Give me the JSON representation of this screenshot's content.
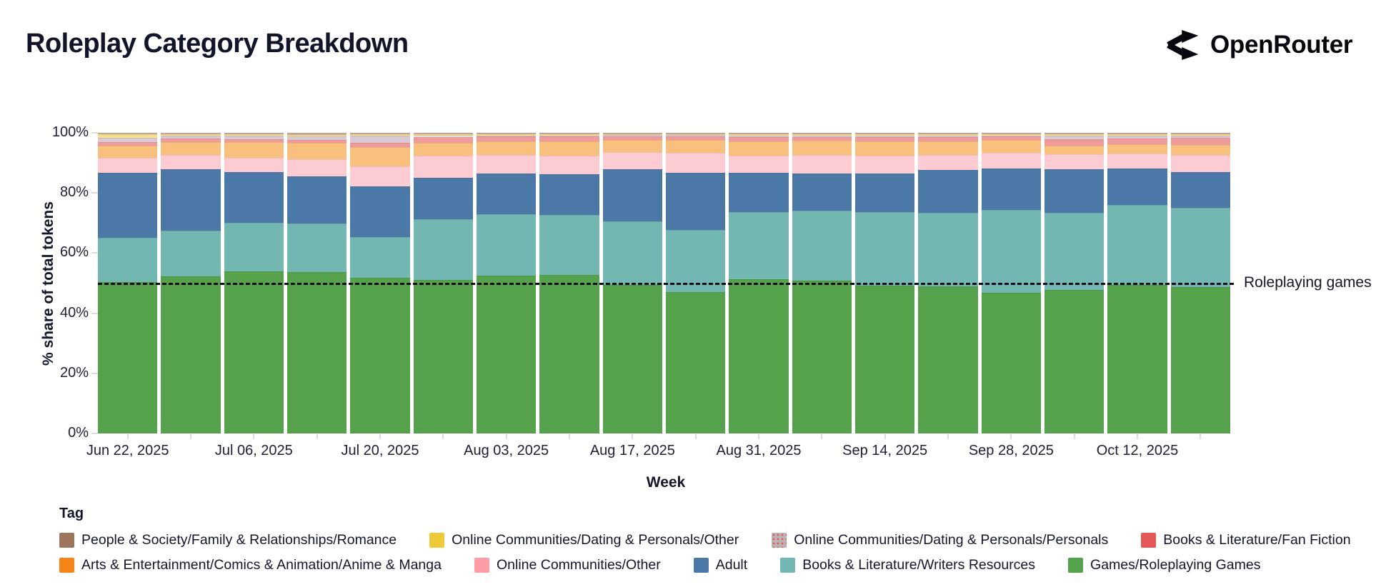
{
  "header": {
    "title": "Roleplay Category Breakdown",
    "brand": "OpenRouter",
    "logo_icon": "openrouter-fork-arrows",
    "brand_color": "#06070f"
  },
  "chart_data": {
    "type": "bar",
    "stacked": true,
    "unit": "percent",
    "title": "Roleplay Category Breakdown",
    "xlabel": "Week",
    "ylabel": "% share of total tokens",
    "ylim": [
      0,
      100
    ],
    "y_ticks": [
      "0%",
      "20%",
      "40%",
      "60%",
      "80%",
      "100%"
    ],
    "y_tick_values": [
      0,
      20,
      40,
      60,
      80,
      100
    ],
    "x_tick_step": 2,
    "grid": false,
    "legend_position": "bottom",
    "annotation": {
      "label": "Roleplaying games",
      "y": 50,
      "line_style": "dashed",
      "line_color": "#0c0d16"
    },
    "x": [
      "Jun 22, 2025",
      "Jun 29, 2025",
      "Jul 06, 2025",
      "Jul 13, 2025",
      "Jul 20, 2025",
      "Jul 27, 2025",
      "Aug 03, 2025",
      "Aug 10, 2025",
      "Aug 17, 2025",
      "Aug 24, 2025",
      "Aug 31, 2025",
      "Sep 07, 2025",
      "Sep 14, 2025",
      "Sep 21, 2025",
      "Sep 28, 2025",
      "Oct 05, 2025",
      "Oct 12, 2025",
      "Oct 19, 2025"
    ],
    "series": [
      {
        "name": "Games/Roleplaying Games",
        "color": "#54a24b",
        "fill": "#55a14c",
        "values": [
          50.4,
          52.2,
          53.9,
          53.7,
          51.8,
          51.1,
          52.5,
          52.7,
          49.4,
          47.0,
          51.3,
          50.8,
          49.2,
          48.9,
          46.8,
          47.7,
          49.4,
          48.7
        ]
      },
      {
        "name": "Books & Literature/Writers Resources",
        "color": "#72b7b2",
        "fill": "#72b7b2",
        "values": [
          14.7,
          15.3,
          16.2,
          16.1,
          13.5,
          20.2,
          20.4,
          20.0,
          21.1,
          20.7,
          22.3,
          23.3,
          24.4,
          24.5,
          27.5,
          25.7,
          26.6,
          26.4
        ]
      },
      {
        "name": "Adult",
        "color": "#4c78a8",
        "fill": "#4c78a8",
        "values": [
          21.6,
          20.4,
          16.9,
          15.7,
          16.9,
          13.7,
          13.6,
          13.5,
          17.4,
          19.0,
          13.1,
          12.4,
          12.9,
          14.2,
          13.8,
          14.5,
          12.1,
          11.8
        ]
      },
      {
        "name": "Online Communities/Other",
        "color": "#ff9da6",
        "fill": "#fdccd3",
        "values": [
          5.0,
          4.7,
          4.7,
          5.7,
          6.6,
          7.4,
          6.1,
          6.2,
          5.7,
          6.6,
          5.7,
          6.1,
          5.9,
          5.0,
          5.2,
          5.0,
          5.0,
          5.7
        ]
      },
      {
        "name": "Arts & Entertainment/Comics & Animation/Anime & Manga",
        "color": "#f58518",
        "fill": "#f8bf7d",
        "values": [
          4.0,
          4.3,
          5.2,
          5.5,
          6.4,
          4.3,
          4.6,
          4.8,
          4.0,
          4.3,
          4.8,
          4.8,
          4.8,
          4.6,
          4.3,
          2.8,
          3.1,
          3.4
        ]
      },
      {
        "name": "Books & Literature/Fan Fiction",
        "color": "#e45756",
        "fill": "#f09b9b",
        "values": [
          1.2,
          1.2,
          1.0,
          1.0,
          1.5,
          2.0,
          1.6,
          1.5,
          1.2,
          1.2,
          1.4,
          1.2,
          1.3,
          1.3,
          1.1,
          2.1,
          1.9,
          2.3
        ]
      },
      {
        "name": "Online Communities/Dating & Personals/Personals",
        "color": "#bdb2b6",
        "fill": "#d9c9d5",
        "pattern": "red-dots",
        "values": [
          1.4,
          0.9,
          1.1,
          1.0,
          2.3,
          0.4,
          0.3,
          0.4,
          0.4,
          0.4,
          0.4,
          0.5,
          0.6,
          0.6,
          0.4,
          1.2,
          0.9,
          0.7
        ]
      },
      {
        "name": "Online Communities/Dating & Personals/Other",
        "color": "#eeca3b",
        "fill": "#f5e08e",
        "values": [
          1.2,
          0.6,
          0.6,
          0.7,
          0.6,
          0.5,
          0.5,
          0.5,
          0.4,
          0.4,
          0.5,
          0.5,
          0.5,
          0.5,
          0.4,
          0.6,
          0.6,
          0.6
        ]
      },
      {
        "name": "People & Society/Family & Relationships/Romance",
        "color": "#9d755d",
        "fill": "#c8ab9b",
        "values": [
          0.5,
          0.4,
          0.4,
          0.6,
          0.4,
          0.4,
          0.4,
          0.4,
          0.4,
          0.4,
          0.5,
          0.4,
          0.4,
          0.4,
          0.5,
          0.4,
          0.4,
          0.4
        ]
      }
    ]
  },
  "legend": {
    "title": "Tag",
    "rows": [
      [
        {
          "label": "People & Society/Family & Relationships/Romance",
          "color": "#9d755d"
        },
        {
          "label": "Online Communities/Dating & Personals/Other",
          "color": "#eeca3b"
        },
        {
          "label": "Online Communities/Dating & Personals/Personals",
          "color": "#bdb2b6",
          "pattern": "red-dots"
        },
        {
          "label": "Books & Literature/Fan Fiction",
          "color": "#e45756"
        }
      ],
      [
        {
          "label": "Arts & Entertainment/Comics & Animation/Anime & Manga",
          "color": "#f58518"
        },
        {
          "label": "Online Communities/Other",
          "color": "#ff9da6"
        },
        {
          "label": "Adult",
          "color": "#4c78a8"
        },
        {
          "label": "Books & Literature/Writers Resources",
          "color": "#72b7b2"
        },
        {
          "label": "Games/Roleplaying Games",
          "color": "#54a24b"
        }
      ]
    ]
  }
}
